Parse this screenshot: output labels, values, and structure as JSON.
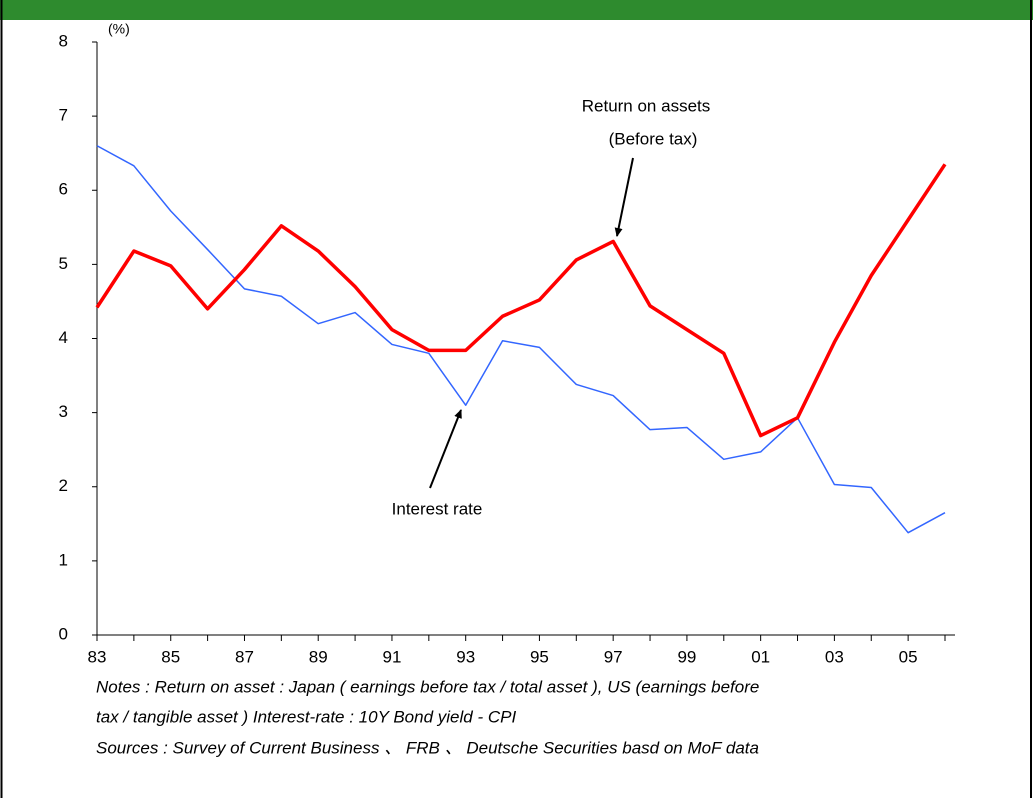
{
  "chart_data": {
    "type": "line",
    "unit_label": "(%)",
    "categories": [
      "83",
      null,
      "85",
      null,
      "87",
      null,
      "89",
      null,
      "91",
      null,
      "93",
      null,
      "95",
      null,
      "97",
      null,
      "99",
      null,
      "01",
      null,
      "03",
      null,
      "05",
      null
    ],
    "series": [
      {
        "name": "Return on assets",
        "color": "#ff0000",
        "width": 3.5,
        "values": [
          4.42,
          5.18,
          4.98,
          4.4,
          4.93,
          5.52,
          5.18,
          4.7,
          4.12,
          3.84,
          3.84,
          4.3,
          4.52,
          5.06,
          5.31,
          4.44,
          4.12,
          3.8,
          2.69,
          2.93,
          3.95,
          4.85,
          5.6,
          6.35
        ]
      },
      {
        "name": "Interest rate",
        "color": "#3366ff",
        "width": 1.5,
        "values": [
          6.6,
          6.33,
          5.72,
          5.2,
          4.67,
          4.57,
          4.2,
          4.35,
          3.92,
          3.8,
          3.1,
          3.97,
          3.88,
          3.38,
          3.23,
          2.77,
          2.8,
          2.37,
          2.47,
          2.93,
          2.03,
          1.99,
          1.38,
          1.65
        ]
      }
    ],
    "annotation": "(Before tax)",
    "ylim": [
      0,
      8
    ],
    "yticks": [
      0,
      1,
      2,
      3,
      4,
      5,
      6,
      7,
      8
    ],
    "grid": false,
    "notes": [
      "Notes : Return on asset  : Japan ( earnings before tax / total asset ), US (earnings before",
      "tax / tangible asset )   Interest-rate : 10Y Bond yield - CPI",
      "Sources : Survey of  Current Business 、 FRB 、 Deutsche Securities basd on MoF data"
    ]
  }
}
